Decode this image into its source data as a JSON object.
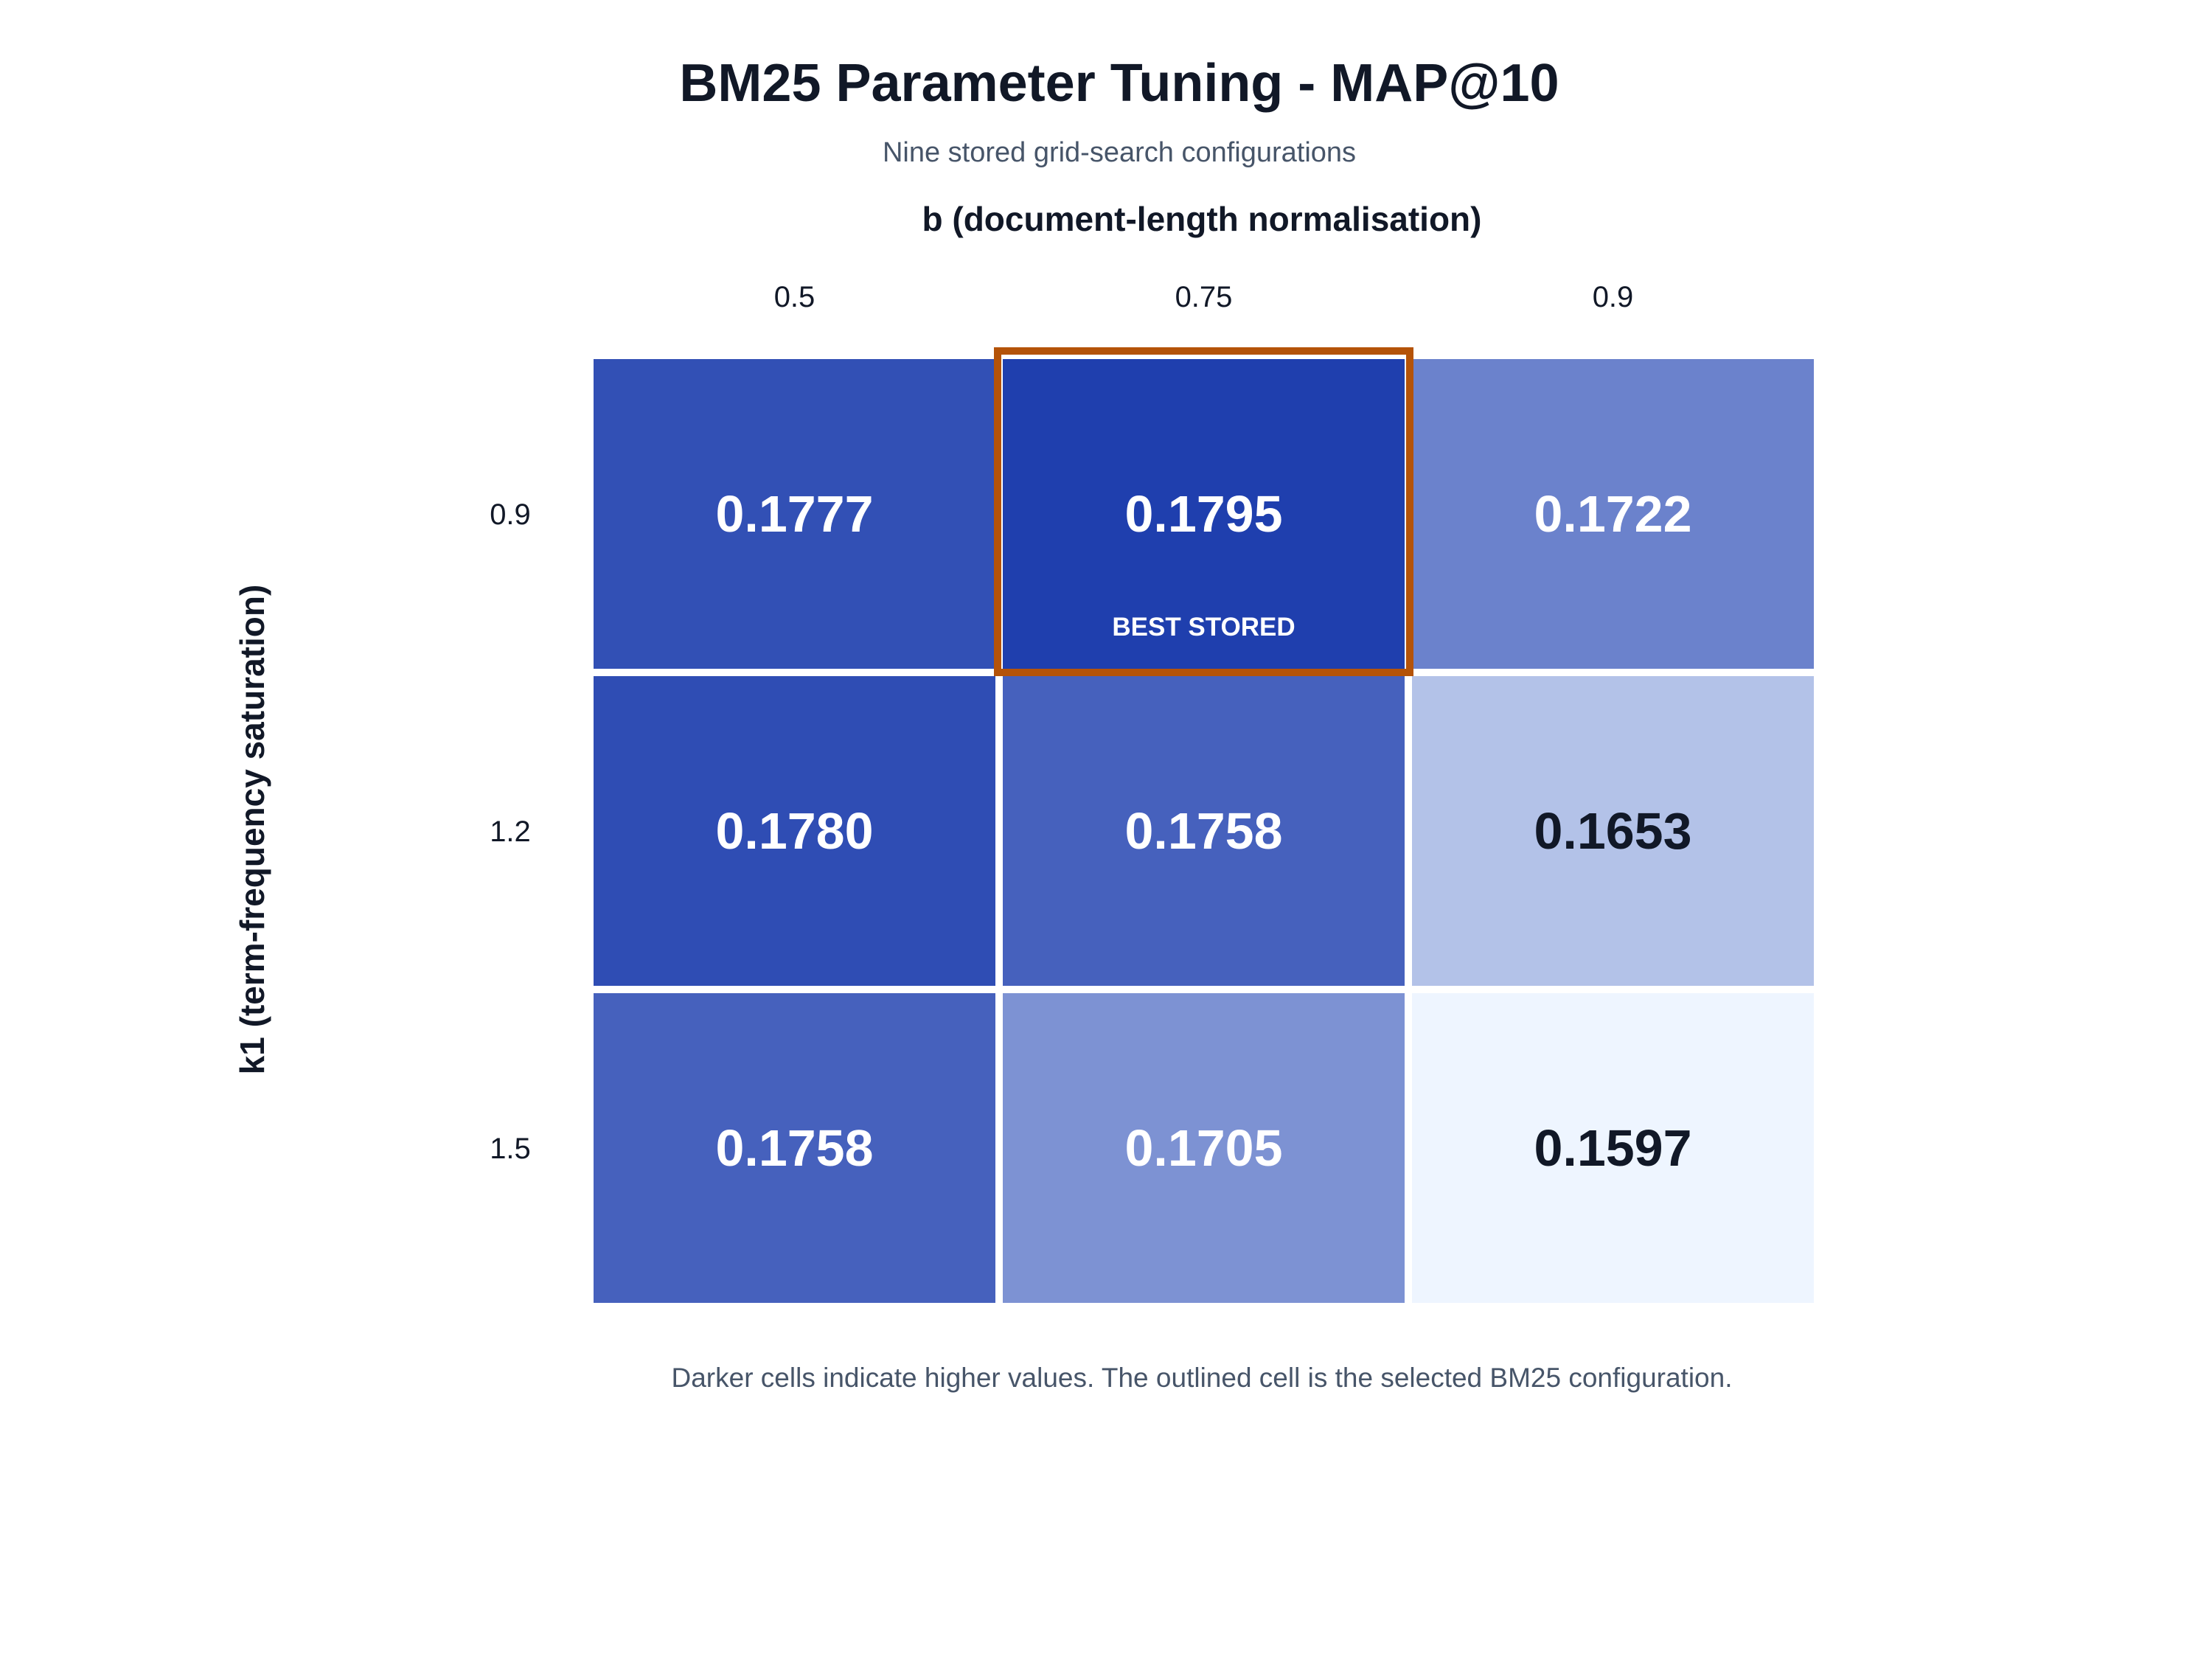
{
  "chart_data": {
    "type": "heatmap",
    "title": "BM25 Parameter Tuning - MAP@10",
    "subtitle": "Nine stored grid-search configurations",
    "xlabel": "b (document-length normalisation)",
    "ylabel": "k1 (term-frequency saturation)",
    "x_categories": [
      "0.5",
      "0.75",
      "0.9"
    ],
    "y_categories": [
      "0.9",
      "1.2",
      "1.5"
    ],
    "values": [
      [
        0.1777,
        0.1795,
        0.1722
      ],
      [
        0.178,
        0.1758,
        0.1653
      ],
      [
        0.1758,
        0.1705,
        0.1597
      ]
    ],
    "value_labels": [
      [
        "0.1777",
        "0.1795",
        "0.1722"
      ],
      [
        "0.1780",
        "0.1758",
        "0.1653"
      ],
      [
        "0.1758",
        "0.1705",
        "0.1597"
      ]
    ],
    "highlight": {
      "row": 0,
      "col": 1,
      "badge": "BEST STORED"
    },
    "color_scale": {
      "low": "#eef5ff",
      "high": "#1f3fae"
    },
    "footnote": "Darker cells indicate higher values. The outlined cell is the selected BM25 configuration.",
    "colors": {
      "highlight_outline": "#b45309",
      "dark_text": "#111827",
      "light_text": "#ffffff",
      "grid_line": "#ffffff"
    }
  }
}
